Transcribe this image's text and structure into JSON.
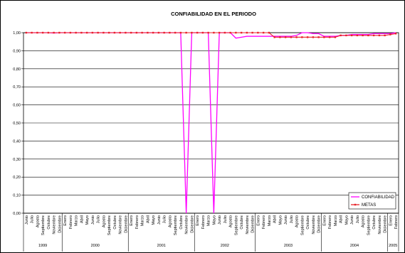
{
  "chart_data": {
    "type": "line",
    "title": "CONFIABILIDAD EN EL PERIODO",
    "xlabel": "",
    "ylabel": "",
    "ylim": [
      0,
      1
    ],
    "y_ticks": [
      "0,00",
      "0,10",
      "0,20",
      "0,30",
      "0,40",
      "0,50",
      "0,60",
      "0,70",
      "0,80",
      "0,90",
      "1,00"
    ],
    "grid": true,
    "legend_position": "bottom-right",
    "x": [
      "Junio",
      "Julio",
      "Agosto",
      "Septiembre",
      "Octubre",
      "Noviembre",
      "Diciembre",
      "Enero",
      "Febrero",
      "Marzo",
      "Abril",
      "Mayo",
      "Junio",
      "Julio",
      "Agosto",
      "Septiembre",
      "Octubre",
      "Noviembre",
      "Diciembre",
      "Enero",
      "Febrero",
      "Marzo",
      "Abril",
      "Mayo",
      "Junio",
      "Julio",
      "Agosto",
      "Septiembre",
      "Octubre",
      "Noviembre",
      "Diciembre",
      "Enero",
      "Febrero",
      "Marzo",
      "Mayo",
      "Junio",
      "Julio",
      "Agosto",
      "Septiembre",
      "Octubre",
      "Noviembre",
      "Diciembre",
      "Enero",
      "Febrero",
      "Marzo",
      "Abril",
      "Mayo",
      "Junio",
      "Julio",
      "Agosto",
      "Septiembre",
      "Octubre",
      "Noviembre",
      "Diciembre",
      "Enero",
      "Febrero",
      "Marzo",
      "Abril",
      "Mayo",
      "Junio",
      "Julio",
      "Agosto",
      "Septiembre",
      "Octubre",
      "Noviembre",
      "Diciembre",
      "Enero",
      "Febrero"
    ],
    "year_groups": [
      {
        "label": "1999",
        "count": 7
      },
      {
        "label": "2000",
        "count": 12
      },
      {
        "label": "2001",
        "count": 12
      },
      {
        "label": "2002",
        "count": 11
      },
      {
        "label": "2003",
        "count": 12
      },
      {
        "label": "2004",
        "count": 12
      },
      {
        "label": "2005",
        "count": 2
      }
    ],
    "series": [
      {
        "name": "CONFIABILIDAD",
        "color": "#ff00ff",
        "values": [
          1,
          1,
          1,
          1,
          1,
          0.998,
          1,
          1,
          1,
          1,
          1,
          1,
          1,
          1,
          1,
          1,
          1,
          1,
          1,
          1,
          1,
          1,
          1,
          1,
          1,
          1,
          1,
          1,
          1,
          0,
          1,
          1,
          1,
          1,
          0,
          1,
          1,
          1,
          0.97,
          0.975,
          0.98,
          0.98,
          0.98,
          0.98,
          0.98,
          0.98,
          0.98,
          0.98,
          0.98,
          0.985,
          1,
          1,
          0.995,
          0.995,
          0.98,
          0.98,
          0.98,
          0.985,
          0.985,
          0.99,
          0.99,
          0.99,
          0.99,
          0.995,
          0.995,
          0.995,
          0.995,
          1
        ]
      },
      {
        "name": "METAS",
        "color": "#e8222a",
        "values": [
          1,
          1,
          1,
          1,
          1,
          1,
          1,
          1,
          1,
          1,
          1,
          1,
          1,
          1,
          1,
          1,
          1,
          1,
          1,
          1,
          1,
          1,
          1,
          1,
          1,
          1,
          1,
          1,
          1,
          1,
          1,
          1,
          1,
          1,
          1,
          1,
          1,
          1,
          1,
          1,
          1,
          1,
          1,
          1,
          1,
          0.975,
          0.975,
          0.975,
          0.975,
          0.975,
          0.975,
          0.975,
          0.975,
          0.975,
          0.975,
          0.975,
          0.975,
          0.985,
          0.985,
          0.985,
          0.985,
          0.985,
          0.985,
          0.985,
          0.985,
          0.985,
          0.99,
          0.995
        ]
      }
    ]
  }
}
